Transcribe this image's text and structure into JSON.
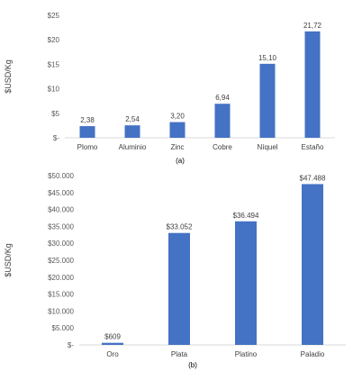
{
  "chart_data": [
    {
      "type": "bar",
      "panel_label": "(a)",
      "ylabel": "$USD/Kg",
      "categories": [
        "Plomo",
        "Aluminio",
        "Zinc",
        "Cobre",
        "Níquel",
        "Estaño"
      ],
      "values": [
        2.38,
        2.54,
        3.2,
        6.94,
        15.1,
        21.72
      ],
      "data_labels": [
        "2,38",
        "2,54",
        "3,20",
        "6,94",
        "15,10",
        "21,72"
      ],
      "ylim": [
        0,
        25
      ],
      "yticks": [
        0,
        5,
        10,
        15,
        20,
        25
      ],
      "ytick_labels": [
        "$-",
        "$5",
        "$10",
        "$15",
        "$20",
        "$25"
      ],
      "grid": false,
      "bar_color": "#4472c4"
    },
    {
      "type": "bar",
      "panel_label": "(b)",
      "ylabel": "$USD/Kg",
      "categories": [
        "Oro",
        "Plata",
        "Platino",
        "Paladio"
      ],
      "values": [
        609,
        33052,
        36494,
        47488
      ],
      "data_labels": [
        "$609",
        "$33.052",
        "$36.494",
        "$47.488"
      ],
      "ylim": [
        0,
        50000
      ],
      "yticks": [
        0,
        5000,
        10000,
        15000,
        20000,
        25000,
        30000,
        35000,
        40000,
        45000,
        50000
      ],
      "ytick_labels": [
        "$-",
        "$5.000",
        "$10.000",
        "$15.000",
        "$20.000",
        "$25.000",
        "$30.000",
        "$35.000",
        "$40.000",
        "$45.000",
        "$50.000"
      ],
      "grid": false,
      "bar_color": "#4472c4"
    }
  ]
}
